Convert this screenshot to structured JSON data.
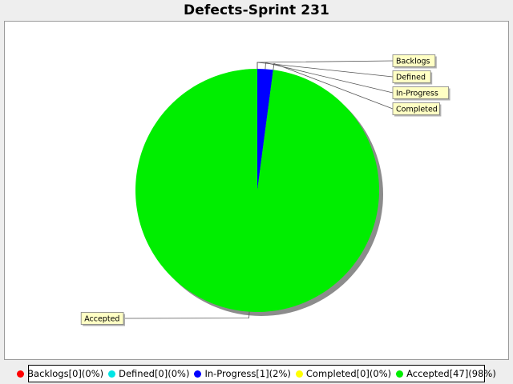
{
  "title": "Defects-Sprint 231",
  "chart_data": {
    "type": "pie",
    "title": "Defects-Sprint 231",
    "slices": [
      {
        "label": "Backlogs",
        "value": 0,
        "percent": 0,
        "color": "#ff0000",
        "legend": "Backlogs[0](0%)"
      },
      {
        "label": "Defined",
        "value": 0,
        "percent": 0,
        "color": "#00e5e5",
        "legend": "Defined[0](0%)"
      },
      {
        "label": "In-Progress",
        "value": 1,
        "percent": 2,
        "color": "#0000ff",
        "legend": "In-Progress[1](2%)"
      },
      {
        "label": "Completed",
        "value": 0,
        "percent": 0,
        "color": "#ffff00",
        "legend": "Completed[0](0%)"
      },
      {
        "label": "Accepted",
        "value": 47,
        "percent": 98,
        "color": "#00ee00",
        "legend": "Accepted[47](98%)"
      }
    ],
    "legend_position": "bottom"
  }
}
